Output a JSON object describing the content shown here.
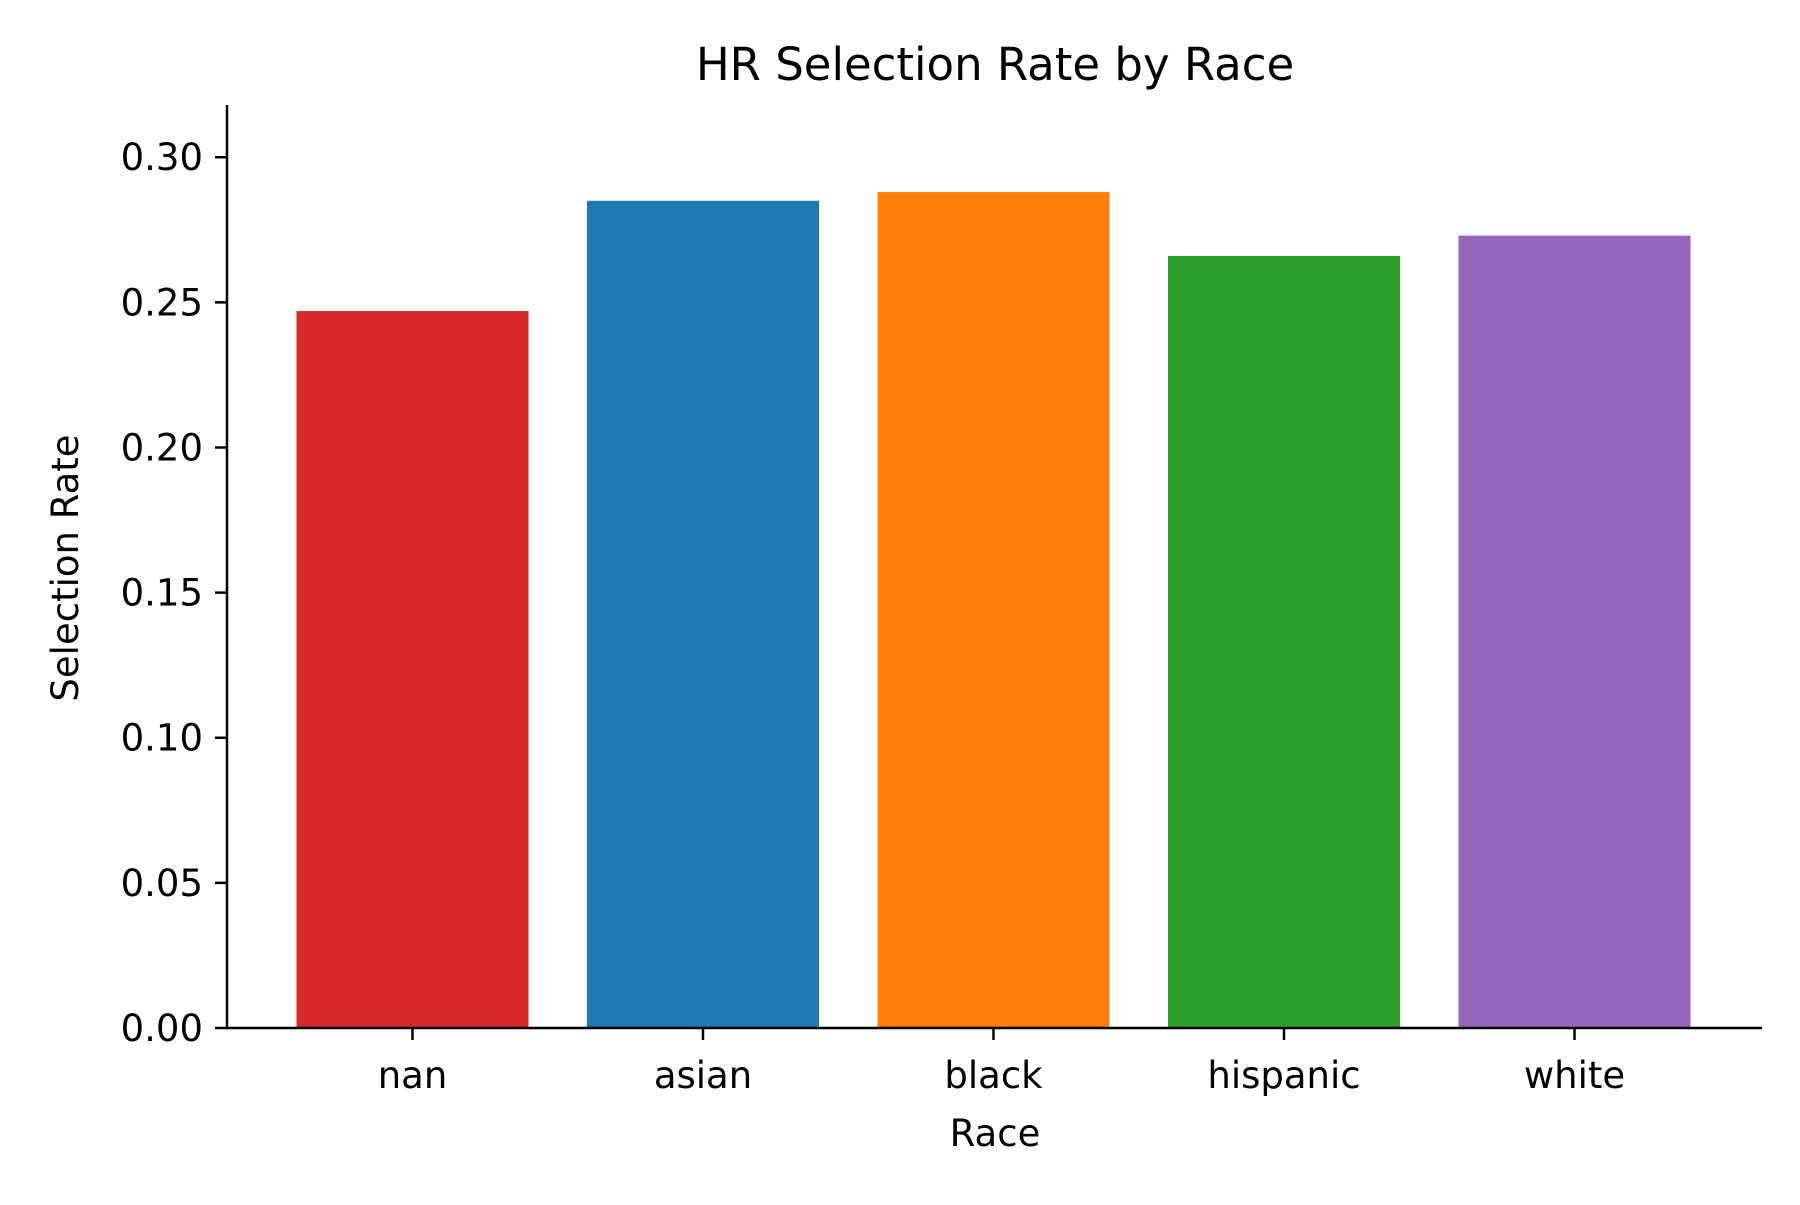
{
  "chart_data": {
    "type": "bar",
    "title": "HR Selection Rate by Race",
    "xlabel": "Race",
    "ylabel": "Selection Rate",
    "categories": [
      "nan",
      "asian",
      "black",
      "hispanic",
      "white"
    ],
    "values": [
      0.247,
      0.285,
      0.288,
      0.266,
      0.273
    ],
    "colors": [
      "#d62728",
      "#1f77b4",
      "#ff7f0e",
      "#2ca02c",
      "#9467bd"
    ],
    "ylim": [
      0,
      0.318
    ],
    "yticks": [
      0.0,
      0.05,
      0.1,
      0.15,
      0.2,
      0.25,
      0.3
    ],
    "ytick_labels": [
      "0.00",
      "0.05",
      "0.10",
      "0.15",
      "0.20",
      "0.25",
      "0.30"
    ],
    "grid": false,
    "legend": false
  }
}
